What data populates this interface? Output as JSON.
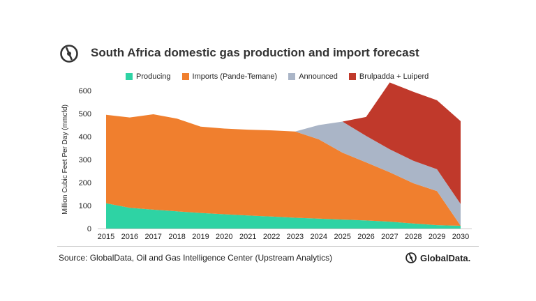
{
  "title": "South Africa domestic gas production and import forecast",
  "source": "Source: GlobalData, Oil and Gas Intelligence Center (Upstream Analytics)",
  "brand": "GlobalData.",
  "chart_data": {
    "type": "area",
    "stacked": true,
    "title": "South Africa domestic gas production and import forecast",
    "ylabel": "Million Cubic Feet Per Day (mmcfd)",
    "xlabel": "",
    "x": [
      "2015",
      "2016",
      "2017",
      "2018",
      "2019",
      "2020",
      "2021",
      "2022",
      "2023",
      "2024",
      "2025",
      "2026",
      "2027",
      "2028",
      "2029",
      "2030"
    ],
    "ylim": [
      0,
      600
    ],
    "yticks": [
      0,
      100,
      200,
      300,
      400,
      500,
      600
    ],
    "grid": false,
    "legend_position": "top",
    "series": [
      {
        "name": "Producing",
        "color": "#2ed3a4",
        "values": [
          110,
          90,
          82,
          75,
          68,
          62,
          57,
          52,
          47,
          43,
          39,
          35,
          30,
          22,
          15,
          12
        ]
      },
      {
        "name": "Imports (Pande-Temane)",
        "color": "#f07f2e",
        "values": [
          385,
          393,
          415,
          403,
          375,
          373,
          373,
          375,
          375,
          345,
          291,
          253,
          215,
          175,
          148,
          0
        ]
      },
      {
        "name": "Announced",
        "color": "#aab5c7",
        "values": [
          0,
          0,
          0,
          0,
          0,
          0,
          0,
          0,
          0,
          62,
          135,
          115,
          100,
          98,
          95,
          95
        ]
      },
      {
        "name": "Brulpadda + Luiperd",
        "color": "#c0392b",
        "values": [
          0,
          0,
          0,
          0,
          0,
          0,
          0,
          0,
          0,
          0,
          0,
          82,
          290,
          300,
          300,
          360
        ]
      }
    ]
  }
}
